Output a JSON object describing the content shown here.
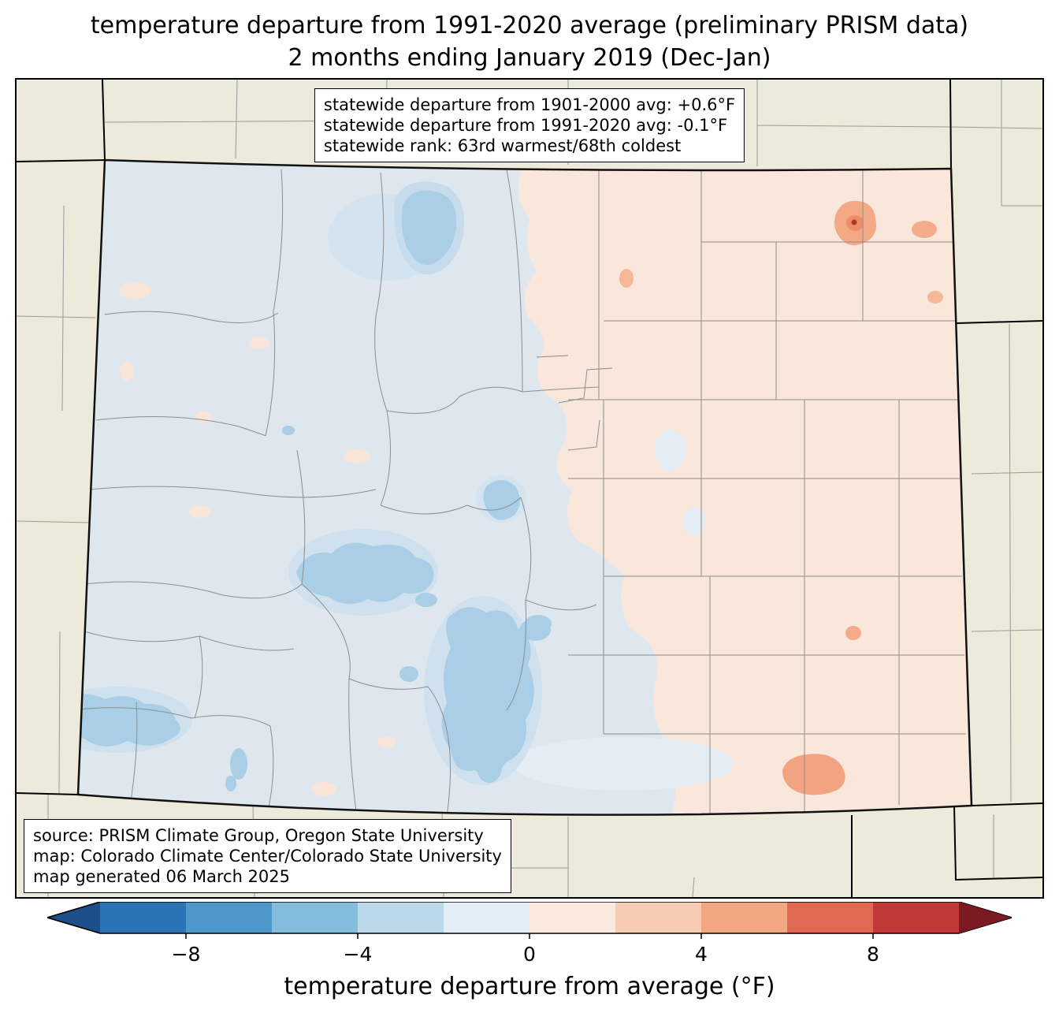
{
  "title": {
    "line1": "temperature departure from 1991-2020 average (preliminary PRISM data)",
    "line2": "2 months ending January 2019 (Dec-Jan)"
  },
  "stats_box": {
    "line1": "statewide departure from 1901-2000 avg: +0.6°F",
    "line2": "statewide departure from 1991-2020 avg: -0.1°F",
    "line3": "statewide rank: 63rd warmest/68th coldest"
  },
  "source_box": {
    "line1": "source: PRISM Climate Group, Oregon State University",
    "line2": "map: Colorado Climate Center/Colorado State University",
    "line3": "map generated 06 March 2025"
  },
  "colorbar": {
    "label": "temperature departure from average (°F)",
    "ticks": [
      "−8",
      "−4",
      "0",
      "4",
      "8"
    ],
    "tick_values": [
      -8,
      -4,
      0,
      4,
      8
    ],
    "range_f": [
      -10,
      10
    ],
    "segment_colors": [
      "#2a73b4",
      "#4d97ca",
      "#84bcdb",
      "#b9d8ea",
      "#e3edf5",
      "#fbe9de",
      "#f8ccb2",
      "#f3a682",
      "#df6951",
      "#c13a38"
    ],
    "under_arrow_color": "#1c4e8c",
    "over_arrow_color": "#7b1a22"
  },
  "map": {
    "region": "Colorado",
    "basemap_color": "#eceadb",
    "cool_fill": "#dfe7ee",
    "warm_fill": "#f9e7dc",
    "cool_anomaly_color": "#a9cee5",
    "warm_anomaly_color": "#f4a986"
  }
}
